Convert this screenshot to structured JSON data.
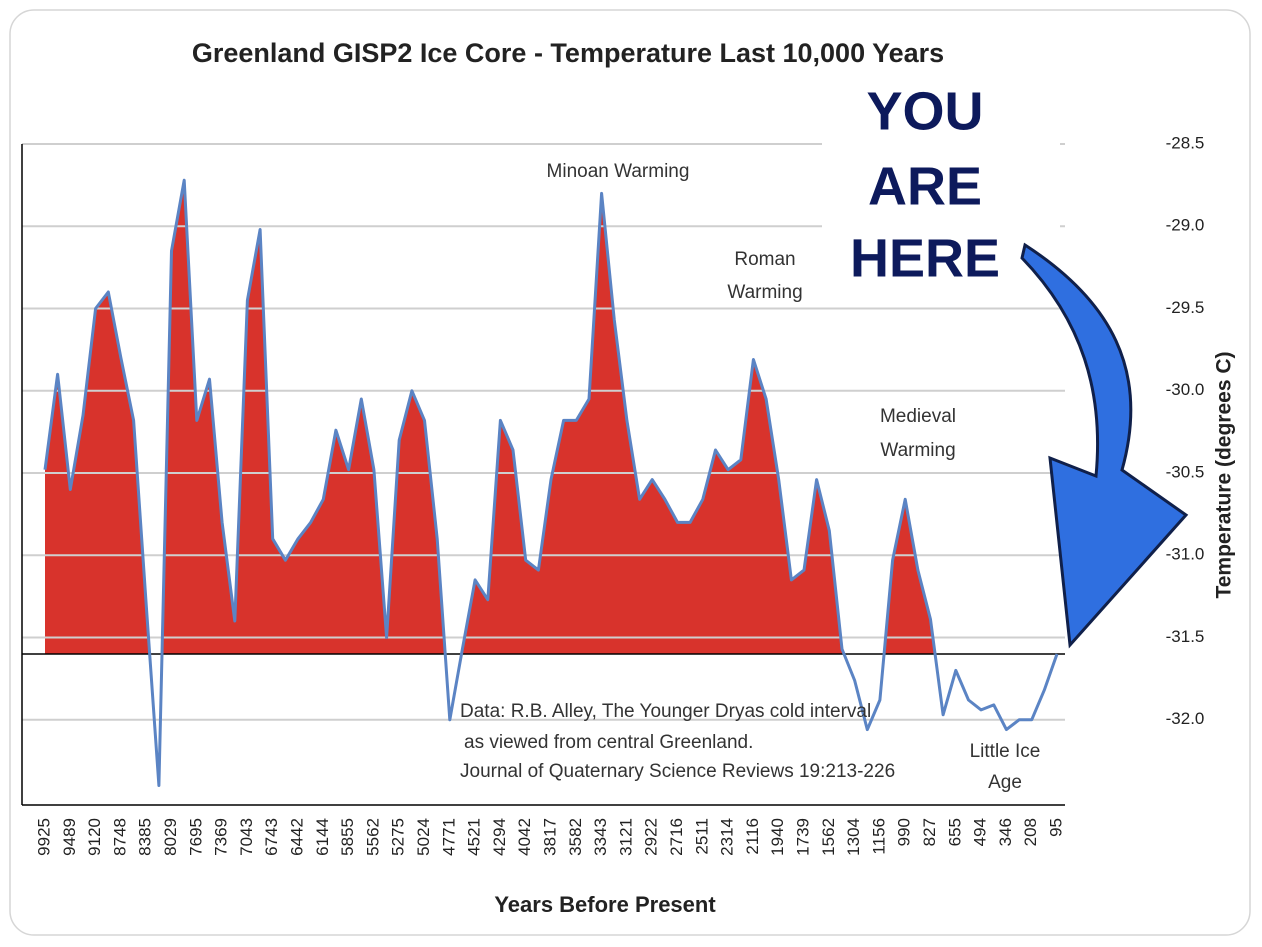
{
  "chart_data": {
    "type": "area",
    "title": "Greenland GISP2 Ice Core - Temperature  Last 10,000 Years",
    "x_label": "Years Before Present",
    "y_label": "Temperature (degrees C)",
    "callout": [
      "YOU",
      "ARE",
      "HERE"
    ],
    "annotations": [
      [
        "Minoan Warming"
      ],
      [
        "Roman",
        "Warming"
      ],
      [
        "Medieval",
        "Warming"
      ],
      [
        "Little Ice",
        "Age"
      ]
    ],
    "source": [
      "Data: R.B. Alley,  The Younger Dryas cold interval",
      "as viewed from central Greenland.",
      "Journal of Quaternary  Science Reviews 19:213-226"
    ],
    "categories": [
      "9925",
      null,
      "9489",
      null,
      "9120",
      null,
      "8748",
      null,
      "8385",
      null,
      "8029",
      null,
      "7695",
      null,
      "7369",
      null,
      "7043",
      null,
      "6743",
      null,
      "6442",
      null,
      "6144",
      null,
      "5855",
      null,
      "5562",
      null,
      "5275",
      null,
      "5024",
      null,
      "4771",
      null,
      "4521",
      null,
      "4294",
      null,
      "4042",
      null,
      "3817",
      null,
      "3582",
      null,
      "3343",
      null,
      "3121",
      null,
      "2922",
      null,
      "2716",
      null,
      "2511",
      null,
      "2314",
      null,
      "2116",
      null,
      "1940",
      null,
      "1739",
      null,
      "1562",
      null,
      "1304",
      null,
      "1156",
      null,
      "990",
      null,
      "827",
      null,
      "655",
      null,
      "494",
      null,
      "346",
      null,
      "208",
      null,
      "95"
    ],
    "values": [
      -30.48,
      -29.9,
      -30.6,
      -30.15,
      -29.5,
      -29.4,
      -29.8,
      -30.18,
      -31.3,
      -32.4,
      -29.15,
      -28.72,
      -30.18,
      -29.93,
      -30.8,
      -31.4,
      -29.45,
      -29.02,
      -30.9,
      -31.03,
      -30.9,
      -30.8,
      -30.66,
      -30.24,
      -30.48,
      -30.05,
      -30.48,
      -31.5,
      -30.3,
      -30.0,
      -30.18,
      -30.9,
      -32.0,
      -31.57,
      -31.15,
      -31.27,
      -30.18,
      -30.36,
      -31.03,
      -31.09,
      -30.54,
      -30.18,
      -30.18,
      -30.05,
      -28.8,
      -29.57,
      -30.18,
      -30.66,
      -30.54,
      -30.66,
      -30.8,
      -30.8,
      -30.66,
      -30.36,
      -30.48,
      -30.42,
      -29.81,
      -30.05,
      -30.54,
      -31.15,
      -31.09,
      -30.54,
      -30.85,
      -31.57,
      -31.76,
      -32.06,
      -31.88,
      -31.03,
      -30.66,
      -31.09,
      -31.39,
      -31.97,
      -31.7,
      -31.88,
      -31.94,
      -31.91,
      -32.06,
      -32.0,
      -32.0,
      -31.82,
      -31.6
    ],
    "baseline": -31.6,
    "line_color": "#5b84c4",
    "fill_color": "#d8332c",
    "ylim": [
      -32.5,
      -28.5
    ],
    "yticks": [
      -28.5,
      {
        "value": -29,
        "label": "-29.0"
      },
      -29.5,
      {
        "value": -30,
        "label": "-30.0"
      },
      -30.5,
      {
        "value": -31,
        "label": "-31.0"
      },
      -31.5,
      {
        "value": -32,
        "label": "-32.0"
      }
    ],
    "grid": true
  }
}
